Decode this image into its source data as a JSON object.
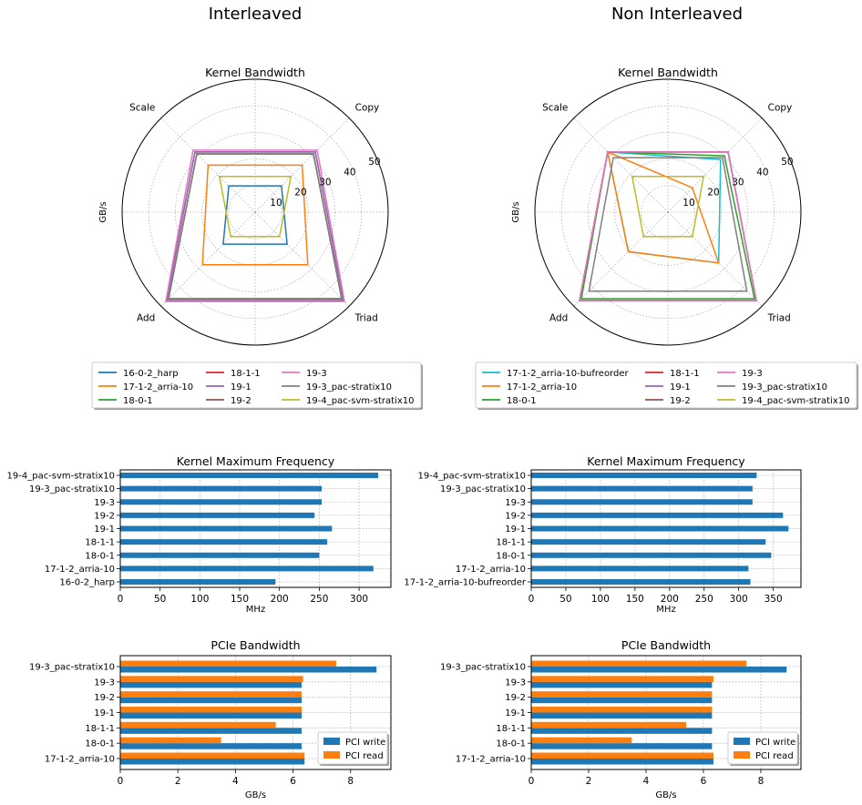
{
  "colors": {
    "16-0-2_harp": "#1f77b4",
    "17-1-2_arria-10": "#ff7f0e",
    "18-0-1": "#2ca02c",
    "18-1-1": "#d62728",
    "19-1": "#9467bd",
    "19-2": "#8c564b",
    "19-3": "#e377c2",
    "19-3_pac-stratix10": "#7f7f7f",
    "19-4_pac-svm-stratix10": "#bcbd22",
    "17-1-2_arria-10-bufreorder": "#17becf",
    "bar": "#1f77b4",
    "pci_write": "#1f77b4",
    "pci_read": "#ff7f0e"
  },
  "panels": [
    {
      "title": "Interleaved"
    },
    {
      "title": "Non Interleaved"
    }
  ],
  "chart_data": [
    {
      "id": "radar-interleaved",
      "type": "radar",
      "title": "Kernel Bandwidth",
      "ylabel": "GB/s",
      "axes": [
        "Copy",
        "Scale",
        "Add",
        "Triad"
      ],
      "rlim": [
        0,
        50
      ],
      "rticks": [
        "10",
        "20",
        "30",
        "40",
        "50"
      ],
      "grid": true,
      "legend_ncol": 3,
      "series": [
        {
          "name": "16-0-2_harp",
          "values": [
            14,
            14,
            17,
            17
          ]
        },
        {
          "name": "17-1-2_arria-10",
          "values": [
            25,
            25,
            28,
            28
          ]
        },
        {
          "name": "18-0-1",
          "values": [
            31,
            31,
            46,
            46
          ]
        },
        {
          "name": "18-1-1",
          "values": [
            32,
            32,
            47,
            47
          ]
        },
        {
          "name": "19-1",
          "values": [
            32,
            32,
            47,
            47
          ]
        },
        {
          "name": "19-2",
          "values": [
            31,
            31,
            46,
            46
          ]
        },
        {
          "name": "19-3",
          "values": [
            33,
            33,
            47.5,
            47.5
          ]
        },
        {
          "name": "19-3_pac-stratix10",
          "values": [
            31,
            31,
            46,
            46
          ]
        },
        {
          "name": "19-4_pac-svm-stratix10",
          "values": [
            19,
            19,
            13,
            13
          ]
        }
      ]
    },
    {
      "id": "radar-non-interleaved",
      "type": "radar",
      "title": "Kernel Bandwidth",
      "ylabel": "GB/s",
      "axes": [
        "Copy",
        "Scale",
        "Add",
        "Triad"
      ],
      "rlim": [
        0,
        50
      ],
      "rticks": [
        "10",
        "20",
        "30",
        "40",
        "50"
      ],
      "grid": true,
      "legend_ncol": 3,
      "series": [
        {
          "name": "17-1-2_arria-10-bufreorder",
          "values": [
            28,
            32,
            21,
            27
          ]
        },
        {
          "name": "17-1-2_arria-10",
          "values": [
            13,
            32,
            21,
            27
          ]
        },
        {
          "name": "18-0-1",
          "values": [
            30,
            32,
            46,
            46
          ]
        },
        {
          "name": "18-1-1",
          "values": [
            32,
            32,
            47,
            47
          ]
        },
        {
          "name": "19-1",
          "values": [
            32,
            32,
            47,
            47
          ]
        },
        {
          "name": "19-2",
          "values": [
            32,
            32,
            47,
            47
          ]
        },
        {
          "name": "19-3",
          "values": [
            32,
            32,
            47,
            47
          ]
        },
        {
          "name": "19-3_pac-stratix10",
          "values": [
            29,
            29,
            42,
            42
          ]
        },
        {
          "name": "19-4_pac-svm-stratix10",
          "values": [
            19,
            19,
            13,
            13
          ]
        }
      ]
    },
    {
      "id": "freq-interleaved",
      "type": "bar-horizontal",
      "title": "Kernel Maximum Frequency",
      "xlabel": "MHz",
      "xlim": [
        0,
        340
      ],
      "xticks": [
        0,
        50,
        100,
        150,
        200,
        250,
        300
      ],
      "grid": true,
      "categories": [
        "16-0-2_harp",
        "17-1-2_arria-10",
        "18-0-1",
        "18-1-1",
        "19-1",
        "19-2",
        "19-3",
        "19-3_pac-stratix10",
        "19-4_pac-svm-stratix10"
      ],
      "values": [
        195,
        318,
        250,
        260,
        266,
        244,
        253,
        253,
        324
      ]
    },
    {
      "id": "freq-non-interleaved",
      "type": "bar-horizontal",
      "title": "Kernel Maximum Frequency",
      "xlabel": "MHz",
      "xlim": [
        0,
        390
      ],
      "xticks": [
        0,
        50,
        100,
        150,
        200,
        250,
        300,
        350
      ],
      "grid": true,
      "categories": [
        "17-1-2_arria-10-bufreorder",
        "17-1-2_arria-10",
        "18-0-1",
        "18-1-1",
        "19-1",
        "19-2",
        "19-3",
        "19-3_pac-stratix10",
        "19-4_pac-svm-stratix10"
      ],
      "values": [
        317,
        314,
        347,
        339,
        372,
        364,
        320,
        320,
        326
      ]
    },
    {
      "id": "pcie-interleaved",
      "type": "bar-horizontal-grouped",
      "title": "PCIe Bandwidth",
      "xlabel": "GB/s",
      "xlim": [
        0,
        9.4
      ],
      "xticks": [
        0,
        2,
        4,
        6,
        8
      ],
      "grid": true,
      "legend_position": "lower-right",
      "categories": [
        "17-1-2_arria-10",
        "18-0-1",
        "18-1-1",
        "19-1",
        "19-2",
        "19-3",
        "19-3_pac-stratix10"
      ],
      "series": [
        {
          "name": "PCI write",
          "values": [
            6.4,
            6.3,
            6.3,
            6.3,
            6.3,
            6.3,
            8.9
          ]
        },
        {
          "name": "PCI read",
          "values": [
            6.4,
            3.5,
            5.4,
            6.3,
            6.3,
            6.35,
            7.5
          ]
        }
      ]
    },
    {
      "id": "pcie-non-interleaved",
      "type": "bar-horizontal-grouped",
      "title": "PCIe Bandwidth",
      "xlabel": "GB/s",
      "xlim": [
        0,
        9.4
      ],
      "xticks": [
        0,
        2,
        4,
        6,
        8
      ],
      "grid": true,
      "legend_position": "lower-right",
      "categories": [
        "17-1-2_arria-10",
        "18-0-1",
        "18-1-1",
        "19-1",
        "19-2",
        "19-3",
        "19-3_pac-stratix10"
      ],
      "series": [
        {
          "name": "PCI write",
          "values": [
            6.35,
            6.3,
            6.3,
            6.3,
            6.3,
            6.3,
            8.9
          ]
        },
        {
          "name": "PCI read",
          "values": [
            6.35,
            3.5,
            5.4,
            6.3,
            6.3,
            6.35,
            7.5
          ]
        }
      ]
    }
  ]
}
